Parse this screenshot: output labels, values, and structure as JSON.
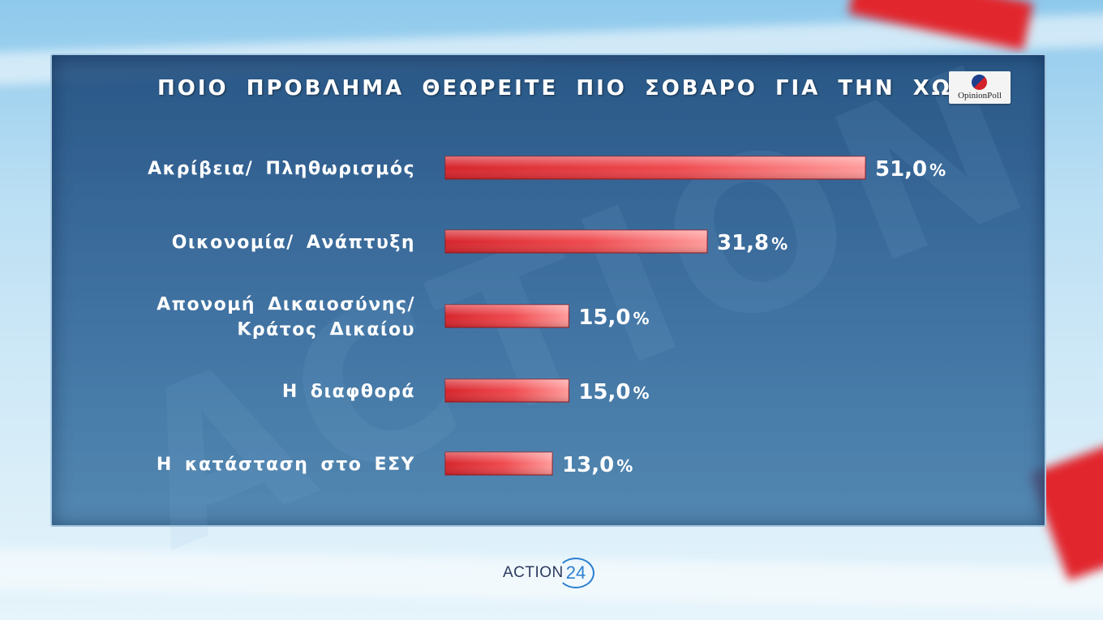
{
  "title": "ΠΟΙΟ ΠΡΟΒΛΗΜΑ ΘΕΩΡΕΙΤΕ ΠΙΟ ΣΟΒΑΡΟ ΓΙΑ ΤΗΝ ΧΩΡΑ;",
  "logo": {
    "text": "OpinionPoll",
    "colors": [
      "#1e3f8c",
      "#d3222a"
    ]
  },
  "brand": {
    "text": "ACTION",
    "number": "24"
  },
  "watermark": "ACTION",
  "colors": {
    "bar_light": "#ff8f8f",
    "bar_dark": "#d6252c",
    "panel": "#1f4d83",
    "text": "#ffffff"
  },
  "chart_data": {
    "type": "bar",
    "orientation": "horizontal",
    "title": "ΠΟΙΟ ΠΡΟΒΛΗΜΑ ΘΕΩΡΕΙΤΕ ΠΙΟ ΣΟΒΑΡΟ ΓΙΑ ΤΗΝ ΧΩΡΑ;",
    "categories": [
      [
        "Ακρίβεια/ Πληθωρισμός"
      ],
      [
        "Οικονομία/ Ανάπτυξη"
      ],
      [
        "Απονομή Δικαιοσύνης/",
        "Κράτος Δικαίου"
      ],
      [
        "Η διαφθορά"
      ],
      [
        "Η κατάσταση στο ΕΣΥ"
      ]
    ],
    "values": [
      51.0,
      31.8,
      15.0,
      15.0,
      13.0
    ],
    "value_labels": [
      "51,0",
      "31,8",
      "15,0",
      "15,0",
      "13,0"
    ],
    "unit": "%",
    "xlim": [
      0,
      51.0
    ],
    "grid": false,
    "legend": "none"
  }
}
